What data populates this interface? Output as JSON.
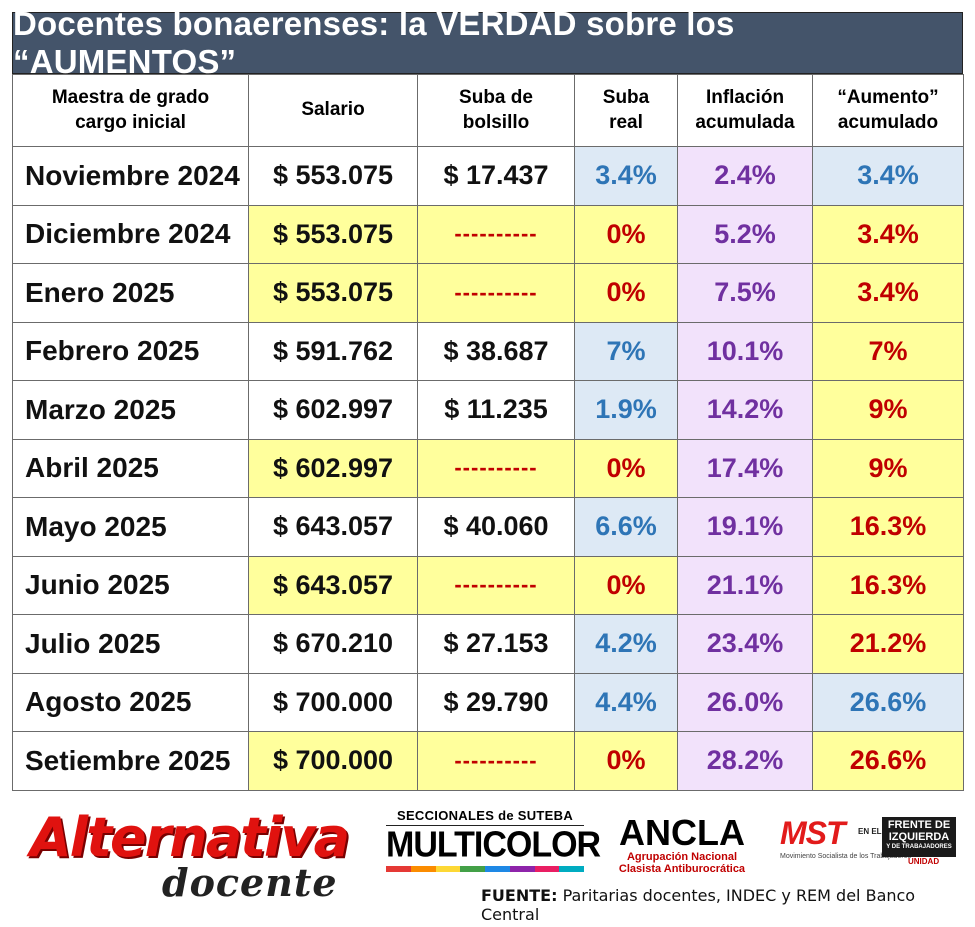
{
  "title": "Docentes bonaerenses: la VERDAD sobre los “AUMENTOS”",
  "chart_data": {
    "type": "table",
    "columns": [
      [
        "Maestra de grado",
        "cargo inicial"
      ],
      [
        "Salario"
      ],
      [
        "Suba de",
        "bolsillo"
      ],
      [
        "Suba",
        "real"
      ],
      [
        "Inflación",
        "acumulada"
      ],
      [
        "“Aumento”",
        "acumulado"
      ]
    ],
    "rows": [
      {
        "month": "Noviembre 2024",
        "salary": "$ 553.075",
        "raise": "$ 17.437",
        "real": "3.4%",
        "inflation": "2.4%",
        "cumulative": "3.4%",
        "salary_bg": "white",
        "real_style": "blue",
        "cum_style": "blue"
      },
      {
        "month": "Diciembre 2024",
        "salary": "$ 553.075",
        "raise": "----------",
        "real": "0%",
        "inflation": "5.2%",
        "cumulative": "3.4%",
        "salary_bg": "yellow",
        "real_style": "red",
        "cum_style": "red"
      },
      {
        "month": "Enero 2025",
        "salary": "$ 553.075",
        "raise": "----------",
        "real": "0%",
        "inflation": "7.5%",
        "cumulative": "3.4%",
        "salary_bg": "yellow",
        "real_style": "red",
        "cum_style": "red"
      },
      {
        "month": "Febrero 2025",
        "salary": "$ 591.762",
        "raise": "$ 38.687",
        "real": "7%",
        "inflation": "10.1%",
        "cumulative": "7%",
        "salary_bg": "white",
        "real_style": "blue",
        "cum_style": "red"
      },
      {
        "month": "Marzo 2025",
        "salary": "$ 602.997",
        "raise": "$ 11.235",
        "real": "1.9%",
        "inflation": "14.2%",
        "cumulative": "9%",
        "salary_bg": "white",
        "real_style": "blue",
        "cum_style": "red"
      },
      {
        "month": "Abril 2025",
        "salary": "$ 602.997",
        "raise": "----------",
        "real": "0%",
        "inflation": "17.4%",
        "cumulative": "9%",
        "salary_bg": "yellow",
        "real_style": "red",
        "cum_style": "red"
      },
      {
        "month": "Mayo 2025",
        "salary": "$ 643.057",
        "raise": "$ 40.060",
        "real": "6.6%",
        "inflation": "19.1%",
        "cumulative": "16.3%",
        "salary_bg": "white",
        "real_style": "blue",
        "cum_style": "red"
      },
      {
        "month": "Junio 2025",
        "salary": "$ 643.057",
        "raise": "----------",
        "real": "0%",
        "inflation": "21.1%",
        "cumulative": "16.3%",
        "salary_bg": "yellow",
        "real_style": "red",
        "cum_style": "red"
      },
      {
        "month": "Julio 2025",
        "salary": "$ 670.210",
        "raise": "$ 27.153",
        "real": "4.2%",
        "inflation": "23.4%",
        "cumulative": "21.2%",
        "salary_bg": "white",
        "real_style": "blue",
        "cum_style": "red"
      },
      {
        "month": "Agosto 2025",
        "salary": "$ 700.000",
        "raise": "$ 29.790",
        "real": "4.4%",
        "inflation": "26.0%",
        "cumulative": "26.6%",
        "salary_bg": "white",
        "real_style": "blue",
        "cum_style": "blue"
      },
      {
        "month": "Setiembre 2025",
        "salary": "$ 700.000",
        "raise": "----------",
        "real": "0%",
        "inflation": "28.2%",
        "cumulative": "26.6%",
        "salary_bg": "yellow",
        "real_style": "red",
        "cum_style": "red"
      }
    ]
  },
  "colors": {
    "title_bg": "#44546a",
    "highlight_yellow": "#ffff9c",
    "highlight_blue": "#dde9f5",
    "highlight_purple": "#f2e2fb",
    "text_blue": "#2e75b6",
    "text_red": "#c00000",
    "text_purple": "#7030a0"
  },
  "logos": {
    "alternativa": {
      "word": "Alternativa",
      "sub": "docente"
    },
    "multicolor": {
      "top": "SECCIONALES de SUTEBA",
      "word": "MULTICOLOR"
    },
    "ancla": {
      "word": "ANCLA",
      "sub1": "Agrupación Nacional",
      "sub2": "Clasista Antiburocrática"
    },
    "mst": {
      "word": "MST",
      "sub": "Movimiento Socialista de los Trabajadores",
      "en": "EN EL",
      "fit1": "FRENTE DE",
      "fit2": "IZQUIERDA",
      "fit3": "Y DE TRABAJADORES",
      "unidad": "UNIDAD"
    }
  },
  "source": {
    "label": "FUENTE:",
    "text": " Paritarias docentes, INDEC y REM del Banco Central"
  }
}
